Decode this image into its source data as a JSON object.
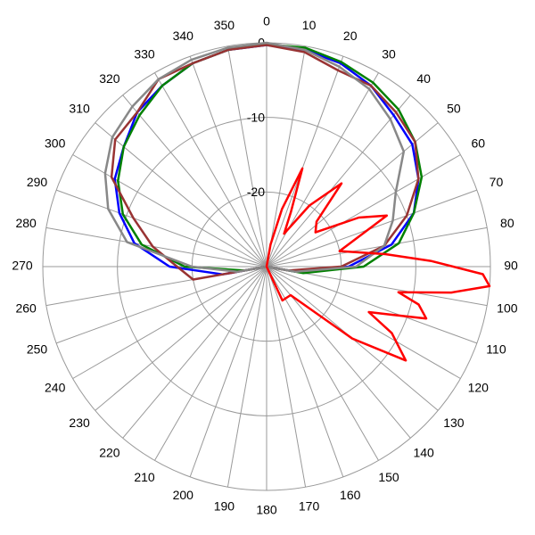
{
  "chart_data": {
    "type": "polar",
    "rlim": [
      -30,
      0
    ],
    "rticks": [
      -20,
      -10,
      0
    ],
    "thetaticks": [
      0,
      10,
      20,
      30,
      40,
      50,
      60,
      70,
      80,
      90,
      100,
      110,
      120,
      130,
      140,
      150,
      160,
      170,
      180,
      190,
      200,
      210,
      220,
      230,
      240,
      250,
      260,
      270,
      280,
      290,
      300,
      310,
      320,
      330,
      340,
      350
    ],
    "direction": "clockwise",
    "grid": true,
    "series": [
      {
        "color": "#0000ff",
        "theta": [
          0,
          10,
          20,
          30,
          40,
          50,
          60,
          70,
          80,
          90,
          100,
          110,
          120,
          180,
          240,
          250,
          260,
          270,
          280,
          290,
          300,
          310,
          320,
          330,
          340,
          350
        ],
        "values": [
          -0.3,
          -0.5,
          -1,
          -2,
          -3.5,
          -4.5,
          -6.5,
          -9,
          -13,
          -19,
          -26,
          -30,
          -30,
          -30,
          -30,
          -30,
          -24,
          -17,
          -12,
          -9,
          -6.5,
          -5,
          -3,
          -2,
          -1,
          -0.5
        ]
      },
      {
        "color": "#008000",
        "theta": [
          0,
          10,
          20,
          30,
          40,
          50,
          60,
          70,
          80,
          90,
          100,
          110,
          120,
          180,
          240,
          250,
          260,
          270,
          280,
          290,
          300,
          310,
          320,
          330,
          340,
          350
        ],
        "values": [
          -0.2,
          -0.2,
          -0.8,
          -1.5,
          -2.5,
          -4,
          -6,
          -9,
          -12,
          -17,
          -25,
          -30,
          -30,
          -30,
          -30,
          -30,
          -27,
          -19,
          -13,
          -9.5,
          -7,
          -5,
          -3.5,
          -2,
          -1,
          -0.5
        ]
      },
      {
        "color": "#993333",
        "theta": [
          0,
          10,
          20,
          30,
          40,
          50,
          60,
          70,
          80,
          90,
          100,
          110,
          120,
          180,
          240,
          250,
          260,
          270,
          280,
          290,
          300,
          310,
          320,
          330,
          340,
          350
        ],
        "values": [
          -0.3,
          -0.8,
          -2,
          -2,
          -3,
          -4,
          -6.5,
          -10,
          -14,
          -20,
          -27,
          -30,
          -30,
          -30,
          -30,
          -30,
          -20,
          -18,
          -14.5,
          -11,
          -6,
          -3.5,
          -3,
          -1,
          -1,
          -0.5
        ]
      },
      {
        "color": "#888888",
        "theta": [
          0,
          10,
          20,
          30,
          40,
          50,
          60,
          70,
          80,
          90,
          100,
          110,
          120,
          180,
          240,
          250,
          260,
          270,
          280,
          290,
          300,
          310,
          320,
          330,
          340,
          350
        ],
        "values": [
          0,
          -0.5,
          -1.5,
          -2.5,
          -4.2,
          -6,
          -10,
          -12,
          -14,
          -18,
          -26,
          -30,
          -30,
          -30,
          -30,
          -30,
          -26,
          -20,
          -11,
          -7.4,
          -5,
          -3,
          -2,
          -1,
          -0.5,
          -0.2
        ]
      },
      {
        "color": "#ff0000",
        "theta": [
          0,
          10,
          15,
          20,
          24,
          28,
          35,
          42,
          48,
          55,
          62,
          67,
          72,
          78,
          84,
          88,
          92,
          95,
          98,
          101,
          104,
          108,
          111,
          114,
          118,
          124,
          130,
          140,
          155,
          165,
          180
        ],
        "values": [
          -30,
          -27,
          -22,
          -16,
          -22,
          -25,
          -20,
          -15,
          -21,
          -22,
          -16,
          -12.5,
          -17,
          -20,
          -14,
          -8,
          -1,
          0,
          -5,
          -12,
          -9,
          -7.5,
          -12,
          -15,
          -11,
          -7.5,
          -15,
          -25,
          -25,
          -30,
          -30
        ]
      }
    ]
  }
}
